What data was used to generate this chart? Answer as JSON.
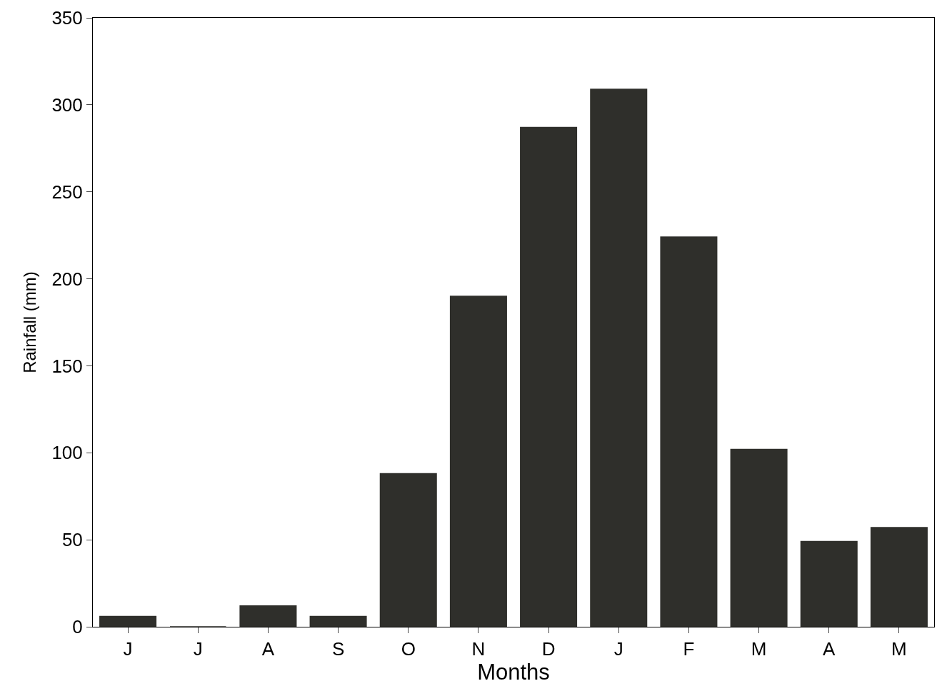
{
  "chart_data": {
    "type": "bar",
    "xlabel": "Months",
    "ylabel": "Rainfall (mm)",
    "categories": [
      "J",
      "J",
      "A",
      "S",
      "O",
      "N",
      "D",
      "J",
      "F",
      "M",
      "A",
      "M"
    ],
    "values": [
      6,
      0,
      12,
      6,
      88,
      190,
      287,
      309,
      224,
      102,
      49,
      57
    ],
    "color": "#2f2f2b",
    "ylim": [
      0,
      350
    ],
    "yticks": [
      0,
      50,
      100,
      150,
      200,
      250,
      300,
      350
    ]
  }
}
